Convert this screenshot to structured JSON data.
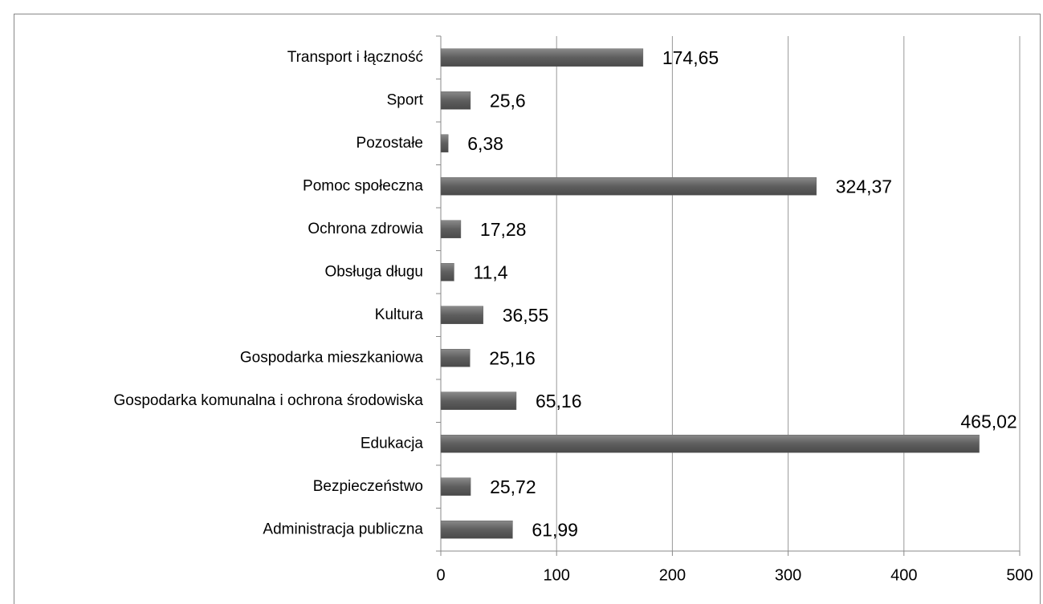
{
  "chart_data": {
    "type": "bar",
    "orientation": "horizontal",
    "categories": [
      "Transport i łączność",
      "Sport",
      "Pozostałe",
      "Pomoc społeczna",
      "Ochrona zdrowia",
      "Obsługa długu",
      "Kultura",
      "Gospodarka mieszkaniowa",
      "Gospodarka komunalna i ochrona środowiska",
      "Edukacja",
      "Bezpieczeństwo",
      "Administracja publiczna"
    ],
    "values": [
      174.65,
      25.6,
      6.38,
      324.37,
      17.28,
      11.4,
      36.55,
      25.16,
      65.16,
      465.02,
      25.72,
      61.99
    ],
    "value_labels": [
      "174,65",
      "25,6",
      "6,38",
      "324,37",
      "17,28",
      "11,4",
      "36,55",
      "25,16",
      "65,16",
      "465,02",
      "25,72",
      "61,99"
    ],
    "color": "#666666",
    "xlim": [
      0,
      500
    ],
    "xticks": [
      0,
      100,
      200,
      300,
      400,
      500
    ],
    "grid": true
  }
}
